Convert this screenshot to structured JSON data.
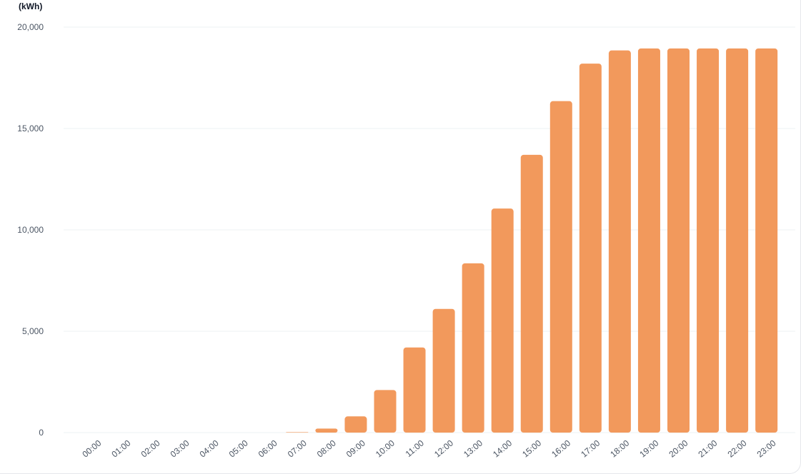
{
  "chart_data": {
    "type": "bar",
    "unit_label": "(kWh)",
    "categories": [
      "00:00",
      "01:00",
      "02:00",
      "03:00",
      "04:00",
      "05:00",
      "06:00",
      "07:00",
      "08:00",
      "09:00",
      "10:00",
      "11:00",
      "12:00",
      "13:00",
      "14:00",
      "15:00",
      "16:00",
      "17:00",
      "18:00",
      "19:00",
      "20:00",
      "21:00",
      "22:00",
      "23:00"
    ],
    "values": [
      0,
      0,
      0,
      0,
      0,
      0,
      0,
      20,
      200,
      800,
      2100,
      4200,
      6100,
      8350,
      11050,
      13700,
      16350,
      18200,
      18850,
      18950,
      18950,
      18950,
      18950,
      18950
    ],
    "ylim": [
      0,
      20000
    ],
    "yticks": [
      0,
      5000,
      10000,
      15000,
      20000
    ],
    "ytick_labels": [
      "0",
      "5,000",
      "10,000",
      "15,000",
      "20,000"
    ],
    "grid": true,
    "bar_color": "#f2995c",
    "grid_color": "#eef0f3",
    "tick_label_color": "#4b5563"
  }
}
